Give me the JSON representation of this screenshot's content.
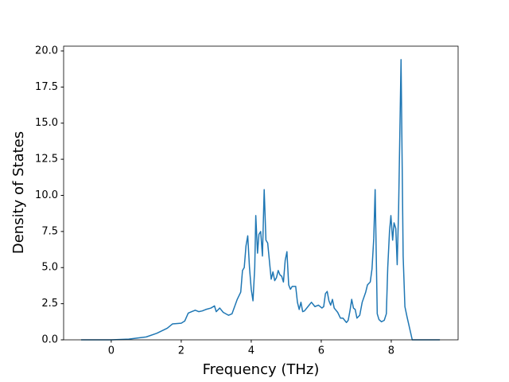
{
  "chart_data": {
    "type": "line",
    "xlabel": "Frequency (THz)",
    "ylabel": "Density of States",
    "color": "#1f77b4",
    "x": [
      -0.86,
      0,
      0.5,
      1,
      1.3,
      1.6,
      1.75,
      2.0,
      2.1,
      2.2,
      2.3,
      2.4,
      2.5,
      2.6,
      2.7,
      2.85,
      2.95,
      3.0,
      3.1,
      3.2,
      3.35,
      3.45,
      3.6,
      3.7,
      3.75,
      3.8,
      3.85,
      3.9,
      3.95,
      4.0,
      4.05,
      4.1,
      4.13,
      4.18,
      4.22,
      4.27,
      4.32,
      4.37,
      4.42,
      4.47,
      4.57,
      4.62,
      4.67,
      4.72,
      4.77,
      4.82,
      4.87,
      4.92,
      4.97,
      5.02,
      5.07,
      5.12,
      5.17,
      5.27,
      5.32,
      5.37,
      5.42,
      5.47,
      5.52,
      5.62,
      5.72,
      5.82,
      5.92,
      6.02,
      6.07,
      6.12,
      6.17,
      6.22,
      6.27,
      6.32,
      6.37,
      6.47,
      6.55,
      6.62,
      6.72,
      6.77,
      6.82,
      6.87,
      6.92,
      6.97,
      7.02,
      7.1,
      7.17,
      7.27,
      7.32,
      7.4,
      7.45,
      7.5,
      7.54,
      7.6,
      7.65,
      7.72,
      7.8,
      7.86,
      7.9,
      7.95,
      7.99,
      8.04,
      8.08,
      8.13,
      8.17,
      8.21,
      8.28,
      8.34,
      8.39,
      8.45,
      8.6,
      9.39
    ],
    "values": [
      0,
      0,
      0.05,
      0.2,
      0.45,
      0.8,
      1.1,
      1.15,
      1.3,
      1.85,
      1.95,
      2.05,
      1.95,
      2.0,
      2.1,
      2.2,
      2.35,
      1.95,
      2.2,
      1.9,
      1.7,
      1.8,
      2.8,
      3.3,
      4.8,
      5.0,
      6.5,
      7.2,
      5.0,
      3.5,
      2.7,
      5.0,
      8.6,
      6.0,
      7.3,
      7.5,
      5.8,
      10.4,
      6.9,
      6.7,
      4.2,
      4.7,
      4.1,
      4.3,
      4.8,
      4.5,
      4.4,
      4.0,
      5.5,
      6.1,
      3.8,
      3.5,
      3.7,
      3.7,
      2.6,
      2.1,
      2.6,
      1.95,
      2.0,
      2.3,
      2.6,
      2.3,
      2.4,
      2.2,
      2.3,
      3.2,
      3.35,
      2.7,
      2.4,
      2.8,
      2.2,
      1.9,
      1.5,
      1.5,
      1.2,
      1.35,
      2.0,
      2.8,
      2.2,
      2.1,
      1.5,
      1.7,
      2.6,
      3.3,
      3.8,
      4.0,
      4.9,
      7.0,
      10.4,
      1.8,
      1.4,
      1.25,
      1.35,
      1.8,
      5.0,
      7.5,
      8.6,
      6.9,
      8.1,
      7.7,
      5.2,
      9.0,
      19.4,
      5.8,
      2.3,
      1.6,
      0.0,
      0
    ],
    "xlim": [
      -1.36,
      9.91
    ],
    "ylim": [
      0,
      20.33
    ],
    "xticks": [
      0,
      2,
      4,
      6,
      8
    ],
    "yticks": [
      {
        "value": 0,
        "label": "0.0"
      },
      2.5,
      {
        "value": 5,
        "label": "5.0"
      },
      7.5,
      {
        "value": 10,
        "label": "10.0"
      },
      12.5,
      {
        "value": 15,
        "label": "15.0"
      },
      17.5,
      {
        "value": 20,
        "label": "20.0"
      }
    ]
  }
}
